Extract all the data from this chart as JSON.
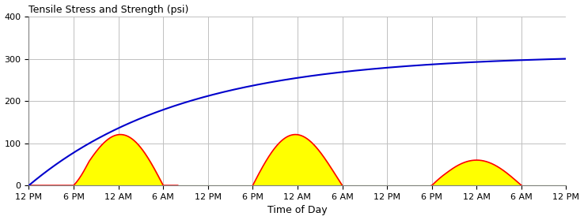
{
  "title": "Tensile Stress and Strength (psi)",
  "xlabel": "Time of Day",
  "ylabel": "",
  "ylim": [
    0,
    400
  ],
  "yticks": [
    0,
    100,
    200,
    300,
    400
  ],
  "xtick_labels": [
    "12 PM",
    "6 PM",
    "12 AM",
    "6 AM",
    "12 PM",
    "6 PM",
    "12 AM",
    "6 AM",
    "12 PM",
    "6 PM",
    "12 AM",
    "6 AM",
    "12 PM"
  ],
  "strength_color": "#0000cc",
  "stress_color": "#ff0000",
  "fill_yellow": "#ffff00",
  "fill_cyan": "#00ffff",
  "background_color": "#ffffff",
  "grid_color": "#c0c0c0",
  "n_points": 2000,
  "total_hours": 72,
  "strength_scale": 310,
  "strength_k": 0.048
}
